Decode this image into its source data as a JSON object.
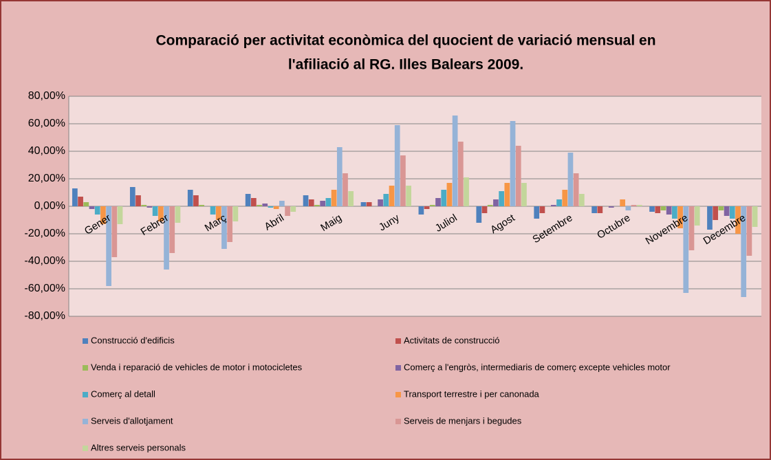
{
  "chart_data": {
    "type": "bar",
    "title": [
      "Comparació per activitat econòmica del quocient de variació mensual en",
      "l'afiliació  al RG. Illes Balears 2009."
    ],
    "categories": [
      "Gener",
      "Febrer",
      "Març",
      "Abril",
      "Maig",
      "Juny",
      "Juliol",
      "Agost",
      "Setembre",
      "Octubre",
      "Novembre",
      "Decembre"
    ],
    "series": [
      {
        "name": "Construcció d'edificis",
        "color": "#4f81bd",
        "values": [
          13,
          14,
          12,
          9,
          8,
          3,
          -6,
          -12,
          -9,
          -5,
          -4,
          -17
        ]
      },
      {
        "name": "Activitats de construcció",
        "color": "#c0504d",
        "values": [
          7,
          8,
          8,
          6,
          5,
          3,
          -2,
          -5,
          -5,
          -5,
          -5,
          -10
        ]
      },
      {
        "name": "Venda i reparació de vehicles de motor i motocicletes",
        "color": "#9bbb59",
        "values": [
          3,
          1,
          1,
          1,
          1,
          0,
          1,
          1,
          0,
          0,
          -3,
          -3
        ]
      },
      {
        "name": "Comerç a l'engròs, intermediaris de comerç excepte vehicles motor",
        "color": "#8064a2",
        "values": [
          -2,
          -1,
          0,
          2,
          4,
          5,
          6,
          5,
          1,
          -1,
          -6,
          -7
        ]
      },
      {
        "name": "Comerç al detall",
        "color": "#4bacc6",
        "values": [
          -6,
          -7,
          -6,
          -1,
          6,
          9,
          12,
          11,
          5,
          0,
          -9,
          -9
        ]
      },
      {
        "name": "Transport terrestre i per canonada",
        "color": "#f79646",
        "values": [
          -13,
          -11,
          -10,
          -2,
          12,
          15,
          17,
          17,
          12,
          5,
          -16,
          -20
        ]
      },
      {
        "name": "Serveis d'allotjament",
        "color": "#95b3d7",
        "values": [
          -58,
          -46,
          -31,
          4,
          43,
          59,
          66,
          62,
          39,
          -3,
          -63,
          -66
        ]
      },
      {
        "name": "Serveis de menjars i begudes",
        "color": "#d99694",
        "values": [
          -37,
          -34,
          -26,
          -7,
          24,
          37,
          47,
          44,
          24,
          1,
          -32,
          -36
        ]
      },
      {
        "name": "Altres serveis personals",
        "color": "#c3d69b",
        "values": [
          -13,
          -12,
          -11,
          -4,
          11,
          15,
          21,
          17,
          9,
          1,
          -14,
          -15
        ]
      }
    ],
    "ylim": [
      -80,
      80
    ],
    "yticks": [
      {
        "value": 80,
        "label": "80,00%"
      },
      {
        "value": 60,
        "label": "60,00%"
      },
      {
        "value": 40,
        "label": "40,00%"
      },
      {
        "value": 20,
        "label": "20,00%"
      },
      {
        "value": 0,
        "label": "0,00%"
      },
      {
        "value": -20,
        "label": "-20,00%"
      },
      {
        "value": -40,
        "label": "-40,00%"
      },
      {
        "value": -60,
        "label": "-60,00%"
      },
      {
        "value": -80,
        "label": "-80,00%"
      }
    ],
    "grid": true
  }
}
